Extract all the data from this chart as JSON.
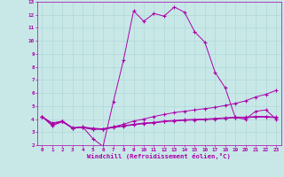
{
  "xlabel": "Windchill (Refroidissement éolien,°C)",
  "background_color": "#c8e8e8",
  "grid_color": "#b0d8d8",
  "line_color": "#aa00aa",
  "xlim": [
    -0.5,
    23.5
  ],
  "ylim": [
    2,
    13
  ],
  "xticks": [
    0,
    1,
    2,
    3,
    4,
    5,
    6,
    7,
    8,
    9,
    10,
    11,
    12,
    13,
    14,
    15,
    16,
    17,
    18,
    19,
    20,
    21,
    22,
    23
  ],
  "yticks": [
    2,
    3,
    4,
    5,
    6,
    7,
    8,
    9,
    10,
    11,
    12,
    13
  ],
  "line1_x": [
    0,
    1,
    2,
    3,
    4,
    5,
    6,
    7,
    8,
    9,
    10,
    11,
    12,
    13,
    14,
    15,
    16,
    17,
    18,
    19,
    20,
    21,
    22,
    23
  ],
  "line1_y": [
    4.2,
    3.5,
    3.8,
    3.3,
    3.4,
    2.5,
    1.9,
    5.3,
    8.5,
    12.3,
    11.5,
    12.1,
    11.9,
    12.6,
    12.2,
    10.7,
    9.9,
    7.6,
    6.4,
    4.1,
    4.0,
    4.6,
    4.7,
    4.0
  ],
  "line2_x": [
    0,
    1,
    2,
    3,
    4,
    5,
    6,
    7,
    8,
    9,
    10,
    11,
    12,
    13,
    14,
    15,
    16,
    17,
    18,
    19,
    20,
    21,
    22,
    23
  ],
  "line2_y": [
    4.2,
    3.5,
    3.85,
    3.3,
    3.35,
    3.2,
    3.25,
    3.4,
    3.6,
    3.85,
    4.0,
    4.2,
    4.35,
    4.5,
    4.6,
    4.7,
    4.8,
    4.9,
    5.05,
    5.2,
    5.4,
    5.7,
    5.9,
    6.2
  ],
  "line3_x": [
    0,
    1,
    2,
    3,
    4,
    5,
    6,
    7,
    8,
    9,
    10,
    11,
    12,
    13,
    14,
    15,
    16,
    17,
    18,
    19,
    20,
    21,
    22,
    23
  ],
  "line3_y": [
    4.2,
    3.7,
    3.85,
    3.35,
    3.4,
    3.3,
    3.25,
    3.4,
    3.5,
    3.6,
    3.7,
    3.75,
    3.85,
    3.9,
    3.95,
    3.98,
    4.0,
    4.05,
    4.1,
    4.15,
    4.15,
    4.2,
    4.2,
    4.15
  ],
  "line4_x": [
    0,
    1,
    2,
    3,
    4,
    5,
    6,
    7,
    8,
    9,
    10,
    11,
    12,
    13,
    14,
    15,
    16,
    17,
    18,
    19,
    20,
    21,
    22,
    23
  ],
  "line4_y": [
    4.15,
    3.65,
    3.8,
    3.3,
    3.35,
    3.25,
    3.2,
    3.35,
    3.45,
    3.55,
    3.65,
    3.7,
    3.8,
    3.85,
    3.9,
    3.93,
    3.95,
    4.0,
    4.05,
    4.1,
    4.1,
    4.15,
    4.15,
    4.1
  ]
}
